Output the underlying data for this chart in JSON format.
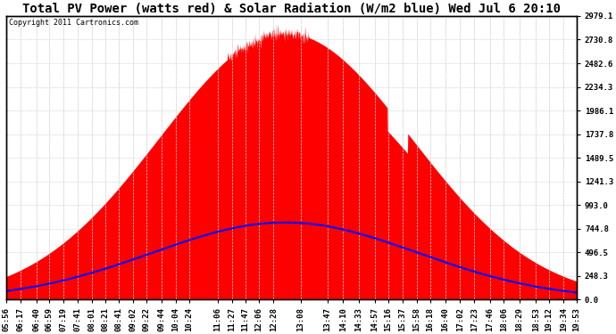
{
  "title": "Total PV Power (watts red) & Solar Radiation (W/m2 blue) Wed Jul 6 20:10",
  "copyright_text": "Copyright 2011 Cartronics.com",
  "bg_color": "#ffffff",
  "plot_bg_color": "#ffffff",
  "grid_color": "#ffffff",
  "red_color": "#ff0000",
  "blue_color": "#0000ff",
  "ymin": 0.0,
  "ymax": 2979.1,
  "yticks": [
    0.0,
    248.3,
    496.5,
    744.8,
    993.0,
    1241.3,
    1489.5,
    1737.8,
    1986.1,
    2234.3,
    2482.6,
    2730.8,
    2979.1
  ],
  "time_labels": [
    "05:56",
    "06:17",
    "06:40",
    "06:59",
    "07:19",
    "07:41",
    "08:01",
    "08:21",
    "08:41",
    "09:02",
    "09:22",
    "09:44",
    "10:04",
    "10:24",
    "11:06",
    "11:27",
    "11:47",
    "12:06",
    "12:28",
    "13:08",
    "13:47",
    "14:10",
    "14:33",
    "14:57",
    "15:16",
    "15:37",
    "15:58",
    "16:18",
    "16:40",
    "17:02",
    "17:23",
    "17:46",
    "18:06",
    "18:29",
    "18:53",
    "19:12",
    "19:34",
    "19:53"
  ],
  "pv_peak": 2800,
  "solar_peak": 810,
  "solar_sigma": 195,
  "pv_sigma": 185,
  "solar_noon_hour": 12.75,
  "title_fontsize": 10,
  "tick_fontsize": 6.5,
  "copyright_fontsize": 6
}
